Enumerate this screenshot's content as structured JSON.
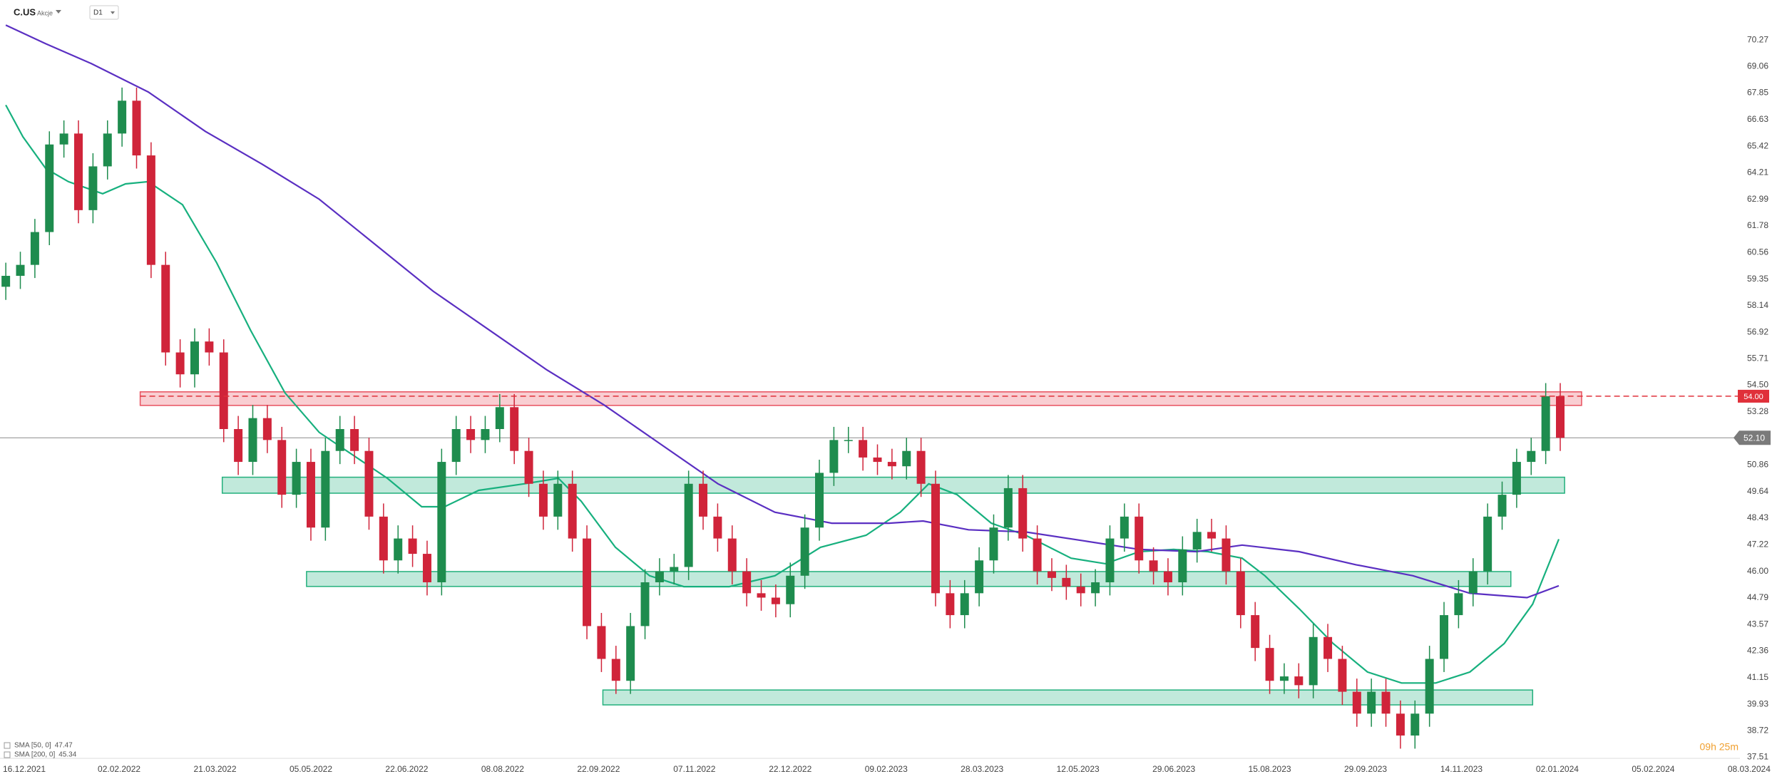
{
  "header": {
    "symbol": "C.US",
    "asset_class": "Akcje",
    "interval": "D1"
  },
  "chart_data": {
    "type": "candlestick",
    "open": [
      59,
      59.5,
      60,
      61.5,
      65.5,
      66,
      62.5,
      64.5,
      66,
      67.5,
      65,
      60,
      56,
      55,
      56.5,
      56,
      52.5,
      51,
      53,
      52,
      49.5,
      51,
      48,
      51.5,
      52.5,
      51.5,
      48.5,
      46.5,
      47.5,
      46.8,
      45.5,
      51,
      52.5,
      52,
      52.5,
      53.5,
      51.5,
      50,
      48.5,
      50,
      47.5,
      43.5,
      42,
      41,
      43.5,
      45.5,
      46,
      46.2,
      50,
      48.5,
      47.5,
      46,
      45,
      44.8,
      44.5,
      45.8,
      48,
      50.5,
      52,
      52,
      51.2,
      51,
      50.8,
      51.5,
      50,
      45,
      44,
      45,
      46.5,
      48,
      49.8,
      47.5,
      46,
      45.7,
      45.3,
      45,
      45.5,
      47.5,
      48.5,
      46.5,
      46,
      45.5,
      47,
      47.8,
      47.5,
      46,
      44,
      42.5,
      41,
      41.2,
      40.8,
      43,
      42,
      40.5,
      39.5,
      40.5,
      39.5,
      38.5,
      39.5,
      42,
      44,
      45,
      46,
      48.5,
      49.5,
      51,
      51.5,
      54
    ],
    "high": [
      60.1,
      60.6,
      62.1,
      66.1,
      66.6,
      66.6,
      65.1,
      66.6,
      68.1,
      68.1,
      65.6,
      60.6,
      56.6,
      57.1,
      57.1,
      56.6,
      53.1,
      53.6,
      53.6,
      52.6,
      51.6,
      51.6,
      52.1,
      53.1,
      53.1,
      52.1,
      49.1,
      48.1,
      48.1,
      47.4,
      51.6,
      53.1,
      53.1,
      53.1,
      54.1,
      54.1,
      52.1,
      50.6,
      50.6,
      50.6,
      48.1,
      44.1,
      42.6,
      44.1,
      46.1,
      46.6,
      46.8,
      50.6,
      50.6,
      49.1,
      48.1,
      46.6,
      45.6,
      45.4,
      46.4,
      48.6,
      51.1,
      52.6,
      52.6,
      52.6,
      51.8,
      51.6,
      52.1,
      52.1,
      50.6,
      45.6,
      45.6,
      47.1,
      48.6,
      50.4,
      50.4,
      48.1,
      46.6,
      46.3,
      45.9,
      46.1,
      48.1,
      49.1,
      49.1,
      47.1,
      46.6,
      47.6,
      48.4,
      48.4,
      48.1,
      46.6,
      44.6,
      43.1,
      41.8,
      41.8,
      43.6,
      43.6,
      42.6,
      41.1,
      41.1,
      41.1,
      40.1,
      40.1,
      42.6,
      44.6,
      45.6,
      46.6,
      49.1,
      50.1,
      51.6,
      52.1,
      54.6,
      54.6
    ],
    "low": [
      58.4,
      58.9,
      59.4,
      60.9,
      64.9,
      61.9,
      61.9,
      63.9,
      65.4,
      64.4,
      59.4,
      55.4,
      54.4,
      54.4,
      55.4,
      51.9,
      50.4,
      50.4,
      51.4,
      48.9,
      48.9,
      47.4,
      47.4,
      50.9,
      50.9,
      47.9,
      45.9,
      45.9,
      46.2,
      44.9,
      44.9,
      50.4,
      51.4,
      51.4,
      51.9,
      50.9,
      49.4,
      47.9,
      47.9,
      46.9,
      42.9,
      41.4,
      40.4,
      40.4,
      42.9,
      44.9,
      45.4,
      45.6,
      47.9,
      46.9,
      45.4,
      44.4,
      44.2,
      43.9,
      43.9,
      45.2,
      47.4,
      49.9,
      51.4,
      50.6,
      50.4,
      50.2,
      50.2,
      49.4,
      44.4,
      43.4,
      43.4,
      44.4,
      45.9,
      47.4,
      46.9,
      45.4,
      45.1,
      44.7,
      44.4,
      44.4,
      44.9,
      46.9,
      45.9,
      45.4,
      44.9,
      44.9,
      46.4,
      46.9,
      45.4,
      43.4,
      41.9,
      40.4,
      40.4,
      40.2,
      40.2,
      41.4,
      39.9,
      38.9,
      38.9,
      38.9,
      37.9,
      37.9,
      38.9,
      41.4,
      43.4,
      44.4,
      45.4,
      47.9,
      48.9,
      50.4,
      50.9,
      51.5
    ],
    "close": [
      59.5,
      60,
      61.5,
      65.5,
      66,
      62.5,
      64.5,
      66,
      67.5,
      65,
      60,
      56,
      55,
      56.5,
      56,
      52.5,
      51,
      53,
      52,
      49.5,
      51,
      48,
      51.5,
      52.5,
      51.5,
      48.5,
      46.5,
      47.5,
      46.8,
      45.5,
      51,
      52.5,
      52,
      52.5,
      53.5,
      51.5,
      50,
      48.5,
      50,
      47.5,
      43.5,
      42,
      41,
      43.5,
      45.5,
      46,
      46.2,
      50,
      48.5,
      47.5,
      46,
      45,
      44.8,
      44.5,
      45.8,
      48,
      50.5,
      52,
      52,
      51.2,
      51,
      50.8,
      51.5,
      50,
      45,
      44,
      45,
      46.5,
      48,
      49.8,
      47.5,
      46,
      45.7,
      45.3,
      45,
      45.5,
      47.5,
      48.5,
      46.5,
      46,
      45.5,
      47,
      47.8,
      47.5,
      46,
      44,
      42.5,
      41,
      41.2,
      40.8,
      43,
      42,
      40.5,
      39.5,
      40.5,
      39.5,
      38.5,
      39.5,
      42,
      44,
      45,
      46,
      48.5,
      49.5,
      51,
      51.5,
      54,
      52.1
    ],
    "up_color": "#1e8c4e",
    "down_color": "#d0243a",
    "xlim": [
      -0.4,
      120.4
    ],
    "xticks": [
      {
        "value": 1.2,
        "label": "16.12.2021"
      },
      {
        "value": 7.8,
        "label": "02.02.2022"
      },
      {
        "value": 14.4,
        "label": "21.03.2022"
      },
      {
        "value": 21.0,
        "label": "05.05.2022"
      },
      {
        "value": 27.6,
        "label": "22.06.2022"
      },
      {
        "value": 34.2,
        "label": "08.08.2022"
      },
      {
        "value": 40.8,
        "label": "22.09.2022"
      },
      {
        "value": 47.4,
        "label": "07.11.2022"
      },
      {
        "value": 54.0,
        "label": "22.12.2022"
      },
      {
        "value": 60.6,
        "label": "09.02.2023"
      },
      {
        "value": 67.2,
        "label": "28.03.2023"
      },
      {
        "value": 73.8,
        "label": "12.05.2023"
      },
      {
        "value": 80.4,
        "label": "29.06.2023"
      },
      {
        "value": 87.0,
        "label": "15.08.2023"
      },
      {
        "value": 93.6,
        "label": "29.09.2023"
      },
      {
        "value": 100.2,
        "label": "14.11.2023"
      },
      {
        "value": 106.8,
        "label": "02.01.2024"
      },
      {
        "value": 113.4,
        "label": "05.02.2024"
      },
      {
        "value": 120.0,
        "label": "08.03.2024"
      }
    ],
    "ylim": [
      37.1,
      72.1
    ],
    "yticks": [
      70.27,
      69.06,
      67.85,
      66.63,
      65.42,
      64.21,
      62.99,
      61.78,
      60.56,
      59.35,
      58.14,
      56.92,
      55.71,
      {
        "value": 54.5,
        "label": "54.50"
      },
      53.28,
      50.86,
      49.64,
      48.43,
      47.22,
      {
        "value": 46,
        "label": "46.00"
      },
      44.79,
      43.57,
      42.36,
      41.15,
      39.93,
      38.72,
      37.51
    ],
    "series": [
      {
        "name": "SMA [50, 0]",
        "last_value": 47.47,
        "color": "#17b07e",
        "x": [
          0,
          1.18,
          2.75,
          4.31,
          6.67,
          8.24,
          9.8,
          12.16,
          14.51,
          16.86,
          19.22,
          21.57,
          23.92,
          26.27,
          28.63,
          30.2,
          32.55,
          35.69,
          38.04,
          39.61,
          41.96,
          44.31,
          46.67,
          49.8,
          52.94,
          56.08,
          59.22,
          61.57,
          63.53,
          65.49,
          67.84,
          70.2,
          73.33,
          75.69,
          78.04,
          80.39,
          82.75,
          85.1,
          86.67,
          89.02,
          91.37,
          93.73,
          96.08,
          98.43,
          100.78,
          103.14,
          105.1,
          106.9
        ],
        "values": [
          67.3,
          65.85,
          64.4,
          63.8,
          63.25,
          63.7,
          63.8,
          62.75,
          60.1,
          57.0,
          54.15,
          52.35,
          51.3,
          50.25,
          48.95,
          48.95,
          49.7,
          50.0,
          50.25,
          49.2,
          47.1,
          45.8,
          45.3,
          45.3,
          45.8,
          47.1,
          47.65,
          48.7,
          50.0,
          49.5,
          48.2,
          47.65,
          46.6,
          46.35,
          46.9,
          47.0,
          46.9,
          46.6,
          45.8,
          44.3,
          42.7,
          41.4,
          40.9,
          40.9,
          41.4,
          42.7,
          44.5,
          47.47
        ]
      },
      {
        "name": "SMA [200, 0]",
        "last_value": 45.34,
        "color": "#5a2fc2",
        "x": [
          0,
          2.75,
          5.88,
          9.8,
          13.73,
          17.65,
          21.57,
          25.49,
          29.41,
          33.33,
          37.25,
          41.18,
          45.1,
          49.02,
          52.94,
          56.86,
          60.78,
          63.14,
          66.27,
          70.2,
          74.12,
          78.04,
          81.96,
          85.1,
          89.02,
          92.94,
          96.86,
          100.78,
          104.71,
          106.9
        ],
        "values": [
          70.95,
          70.1,
          69.2,
          67.9,
          66.1,
          64.6,
          63.0,
          60.9,
          58.8,
          57.0,
          55.2,
          53.6,
          51.8,
          50.0,
          48.7,
          48.2,
          48.2,
          48.3,
          47.9,
          47.8,
          47.4,
          47.0,
          46.9,
          47.2,
          46.9,
          46.3,
          45.8,
          45.0,
          44.8,
          45.34
        ]
      }
    ],
    "zones": [
      {
        "x": [
          9.25,
          108.47
        ],
        "y": [
          53.58,
          54.2
        ],
        "color": "#e8505e"
      },
      {
        "x": [
          14.9,
          107.3
        ],
        "y": [
          49.57,
          50.3
        ],
        "color": "#22b07c"
      },
      {
        "x": [
          20.7,
          103.6
        ],
        "y": [
          45.31,
          45.99
        ],
        "color": "#22b07c"
      },
      {
        "x": [
          41.1,
          105.1
        ],
        "y": [
          39.9,
          40.58
        ],
        "color": "#22b07c"
      }
    ],
    "level_line": {
      "value": 54,
      "label": "54.00",
      "color": "#e0303a"
    },
    "current_price": {
      "value": 52.1,
      "label": "52.10",
      "color": "#8a8a8a"
    },
    "countdown": "09h 25m"
  }
}
